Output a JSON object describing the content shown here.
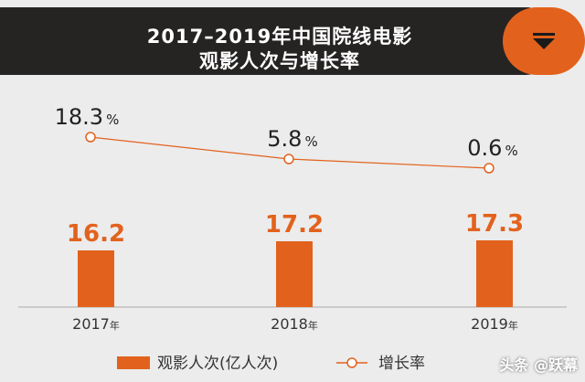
{
  "header": {
    "title_line1": "2017–2019年中国院线电影",
    "title_line2": "观影人次与增长率",
    "dropdown_icon": "filter-triangle-icon"
  },
  "colors": {
    "accent": "#e2621d",
    "title_bg": "#262323",
    "background": "#ececec",
    "line": "#e2621d",
    "axis": "#aaaaaa",
    "text_dark": "#222222"
  },
  "chart_data": {
    "type": "bar",
    "categories": [
      "2017",
      "2018",
      "2019"
    ],
    "category_suffix": "年",
    "series": [
      {
        "name": "观影人次(亿人次)",
        "type": "bar",
        "values": [
          16.2,
          17.2,
          17.3
        ]
      },
      {
        "name": "增长率",
        "type": "line",
        "values": [
          18.3,
          5.8,
          0.6
        ],
        "unit": "%"
      }
    ],
    "legend_position": "bottom",
    "grid": false
  },
  "watermark": "头条 @跃幕"
}
